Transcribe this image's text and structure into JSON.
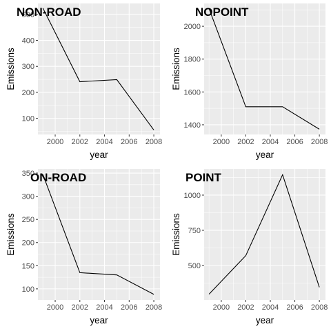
{
  "chart_data": [
    {
      "type": "line",
      "title": "NON-ROAD",
      "xlabel": "year",
      "ylabel": "Emissions",
      "x": [
        1999,
        2002,
        2005,
        2008
      ],
      "series": [
        {
          "values": [
            524,
            241,
            249,
            55
          ]
        }
      ],
      "xlim": [
        1998.6,
        2008.5
      ],
      "ylim": [
        38,
        542
      ],
      "xticks": [
        2000,
        2002,
        2004,
        2006,
        2008
      ],
      "yticks": [
        100,
        200,
        300,
        400,
        500
      ],
      "grid": true
    },
    {
      "type": "line",
      "title": "NOPOINT",
      "xlabel": "year",
      "ylabel": "Emissions",
      "x": [
        1999,
        2002,
        2005,
        2008
      ],
      "series": [
        {
          "values": [
            2108,
            1510,
            1510,
            1373
          ]
        }
      ],
      "xlim": [
        1998.6,
        2008.5
      ],
      "ylim": [
        1341,
        2139
      ],
      "xticks": [
        2000,
        2002,
        2004,
        2006,
        2008
      ],
      "yticks": [
        1400,
        1600,
        1800,
        2000
      ],
      "grid": true
    },
    {
      "type": "line",
      "title": "ON-ROAD",
      "xlabel": "year",
      "ylabel": "Emissions",
      "x": [
        1999,
        2002,
        2005,
        2008
      ],
      "series": [
        {
          "values": [
            347,
            135,
            130,
            88
          ]
        }
      ],
      "xlim": [
        1998.6,
        2008.5
      ],
      "ylim": [
        76,
        359
      ],
      "xticks": [
        2000,
        2002,
        2004,
        2006,
        2008
      ],
      "yticks": [
        100,
        150,
        200,
        250,
        300,
        350
      ],
      "grid": true
    },
    {
      "type": "line",
      "title": "POINT",
      "xlabel": "year",
      "ylabel": "Emissions",
      "x": [
        1999,
        2002,
        2005,
        2008
      ],
      "series": [
        {
          "values": [
            296,
            570,
            1145,
            345
          ]
        }
      ],
      "xlim": [
        1998.6,
        2008.5
      ],
      "ylim": [
        255,
        1186
      ],
      "xticks": [
        2000,
        2002,
        2004,
        2006,
        2008
      ],
      "yticks": [
        500,
        750,
        1000
      ],
      "grid": true
    }
  ]
}
